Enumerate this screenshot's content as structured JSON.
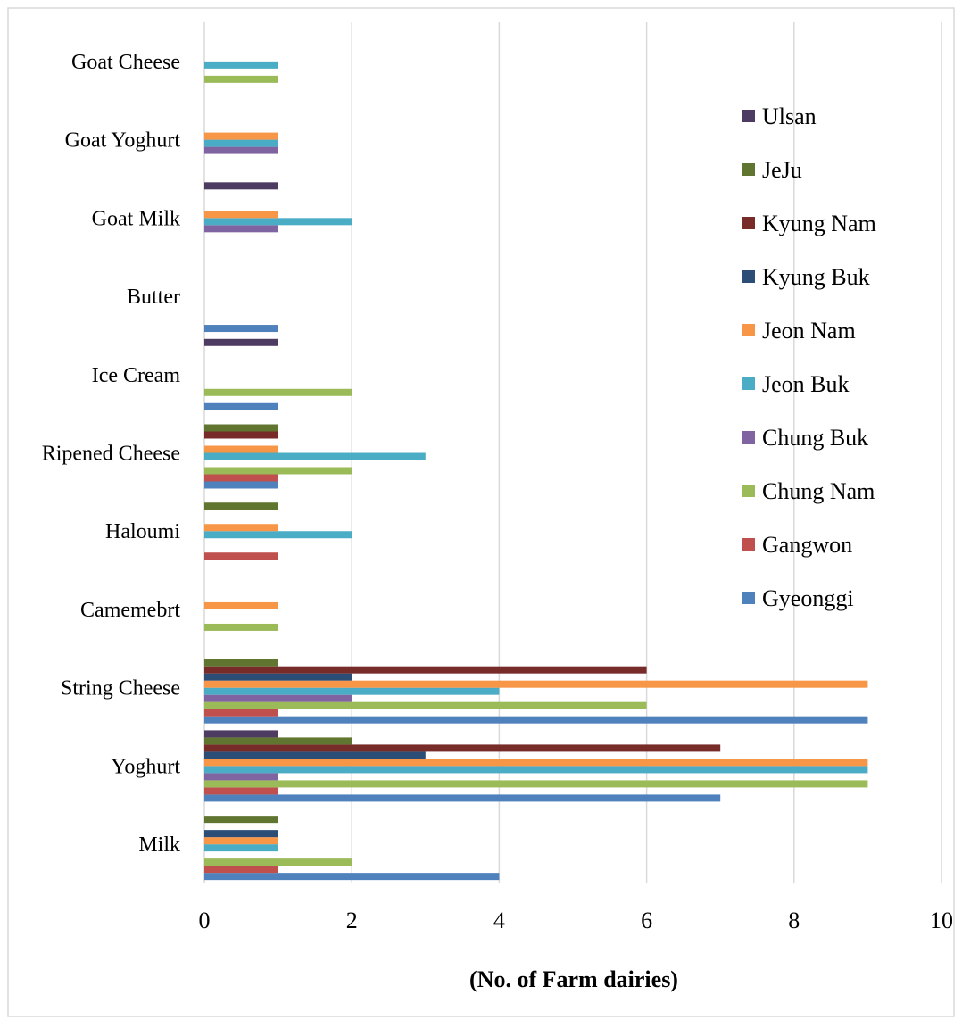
{
  "chart_data": {
    "type": "bar",
    "orientation": "horizontal",
    "title": "",
    "xlabel": "(No. of Farm dairies)",
    "ylabel": "",
    "xlim": [
      0,
      10
    ],
    "x_ticks": [
      0,
      2,
      4,
      6,
      8,
      10
    ],
    "grid": "vertical",
    "legend_position": "right",
    "categories": [
      "Milk",
      "Yoghurt",
      "String Cheese",
      "Camemebrt",
      "Haloumi",
      "Ripened Cheese",
      "Ice Cream",
      "Butter",
      "Goat Milk",
      "Goat Yoghurt",
      "Goat Cheese"
    ],
    "series": [
      {
        "name": "Gyeonggi",
        "color": "#4f81bd",
        "values": [
          4,
          7,
          9,
          0,
          0,
          1,
          1,
          1,
          0,
          0,
          0
        ]
      },
      {
        "name": "Gangwon",
        "color": "#c0504d",
        "values": [
          1,
          1,
          1,
          0,
          1,
          1,
          0,
          0,
          0,
          0,
          0
        ]
      },
      {
        "name": "Chung Nam",
        "color": "#9bbb59",
        "values": [
          2,
          9,
          6,
          1,
          0,
          2,
          2,
          0,
          0,
          0,
          1
        ]
      },
      {
        "name": "Chung Buk",
        "color": "#8064a2",
        "values": [
          0,
          1,
          2,
          0,
          0,
          0,
          0,
          0,
          1,
          1,
          0
        ]
      },
      {
        "name": "Jeon Buk",
        "color": "#4bacc6",
        "values": [
          1,
          9,
          4,
          0,
          2,
          3,
          0,
          0,
          2,
          1,
          1
        ]
      },
      {
        "name": "Jeon Nam",
        "color": "#f79646",
        "values": [
          1,
          9,
          9,
          1,
          1,
          1,
          0,
          0,
          1,
          1,
          0
        ]
      },
      {
        "name": "Kyung Buk",
        "color": "#2c4d75",
        "values": [
          1,
          3,
          2,
          0,
          0,
          0,
          0,
          0,
          0,
          0,
          0
        ]
      },
      {
        "name": "Kyung Nam",
        "color": "#772c2a",
        "values": [
          0,
          7,
          6,
          0,
          0,
          1,
          0,
          0,
          0,
          0,
          0
        ]
      },
      {
        "name": "JeJu",
        "color": "#5f7530",
        "values": [
          1,
          2,
          1,
          0,
          1,
          1,
          0,
          0,
          0,
          0,
          0
        ]
      },
      {
        "name": "Ulsan",
        "color": "#4d3b62",
        "values": [
          0,
          1,
          0,
          0,
          0,
          0,
          1,
          0,
          1,
          0,
          0
        ]
      }
    ]
  }
}
